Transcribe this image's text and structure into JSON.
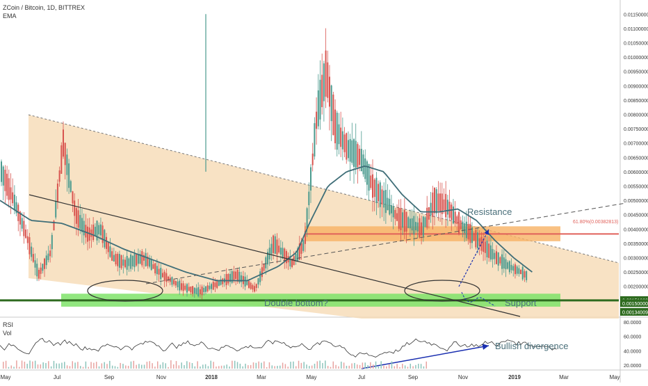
{
  "header": {
    "symbol_line": "ZCoin / Bitcoin, 1D, BITTREX",
    "indicator": "EMA"
  },
  "rsi_panel": {
    "label": "RSI",
    "vol_label": "Vol",
    "ticks": [
      "80.0000",
      "60.0000",
      "40.0000",
      "20.0000"
    ]
  },
  "annotations": {
    "resistance": "Resistance",
    "support": "Support",
    "double_bottom": "Double bottom?",
    "bullish_divergence": "Bullish divergence",
    "fib_label": "61.80%(0.00382813)"
  },
  "price_tags": [
    {
      "label": "0.00151009",
      "color": "#2e6b1f"
    },
    {
      "label": "0.00150000",
      "color": "#2e6b1f"
    },
    {
      "label": "0.00134009",
      "color": "#2e6b1f"
    }
  ],
  "chart_data": {
    "type": "candlestick",
    "xlabel": "",
    "ylabel": "",
    "ylim": [
      0.0,
      0.0116
    ],
    "y_ticks": [
      "0.01150000",
      "0.01100000",
      "0.01050000",
      "0.01000000",
      "0.00950000",
      "0.00900000",
      "0.00850000",
      "0.00800000",
      "0.00750000",
      "0.00700000",
      "0.00650000",
      "0.00600000",
      "0.00550000",
      "0.00500000",
      "0.00450000",
      "0.00400000",
      "0.00350000",
      "0.00300000",
      "0.00250000",
      "0.00200000"
    ],
    "x_ticks": [
      "May",
      "Jul",
      "Sep",
      "Nov",
      "2018",
      "Mar",
      "May",
      "Jul",
      "Sep",
      "Nov",
      "2019",
      "Mar",
      "May"
    ],
    "price_path": [
      [
        0,
        0.006
      ],
      [
        0.02,
        0.005
      ],
      [
        0.04,
        0.0038
      ],
      [
        0.06,
        0.0024
      ],
      [
        0.08,
        0.0032
      ],
      [
        0.1,
        0.007
      ],
      [
        0.12,
        0.0045
      ],
      [
        0.14,
        0.0038
      ],
      [
        0.16,
        0.004
      ],
      [
        0.18,
        0.003
      ],
      [
        0.2,
        0.0028
      ],
      [
        0.23,
        0.003
      ],
      [
        0.26,
        0.0024
      ],
      [
        0.29,
        0.002
      ],
      [
        0.32,
        0.0018
      ],
      [
        0.35,
        0.0021
      ],
      [
        0.38,
        0.0024
      ],
      [
        0.41,
        0.0019
      ],
      [
        0.44,
        0.0035
      ],
      [
        0.47,
        0.0028
      ],
      [
        0.49,
        0.0035
      ],
      [
        0.51,
        0.008
      ],
      [
        0.525,
        0.0095
      ],
      [
        0.54,
        0.0075
      ],
      [
        0.56,
        0.0068
      ],
      [
        0.58,
        0.0065
      ],
      [
        0.6,
        0.0055
      ],
      [
        0.62,
        0.005
      ],
      [
        0.64,
        0.0044
      ],
      [
        0.66,
        0.0042
      ],
      [
        0.68,
        0.004
      ],
      [
        0.7,
        0.005
      ],
      [
        0.72,
        0.0048
      ],
      [
        0.74,
        0.0042
      ],
      [
        0.76,
        0.0038
      ],
      [
        0.78,
        0.0034
      ],
      [
        0.8,
        0.003
      ],
      [
        0.82,
        0.0027
      ],
      [
        0.84,
        0.0025
      ],
      [
        0.86,
        0.0022
      ],
      [
        0.88,
        0.002
      ],
      [
        0.9,
        0.0017
      ],
      [
        0.92,
        0.0016
      ],
      [
        0.94,
        0.0015
      ],
      [
        0.96,
        0.0016
      ],
      [
        0.98,
        0.0016
      ],
      [
        1.0,
        0.0017
      ]
    ],
    "ema_path": [
      [
        0,
        0.005
      ],
      [
        0.05,
        0.0043
      ],
      [
        0.1,
        0.0042
      ],
      [
        0.15,
        0.0038
      ],
      [
        0.2,
        0.0033
      ],
      [
        0.25,
        0.0029
      ],
      [
        0.3,
        0.0025
      ],
      [
        0.35,
        0.0022
      ],
      [
        0.4,
        0.0022
      ],
      [
        0.45,
        0.0027
      ],
      [
        0.48,
        0.0032
      ],
      [
        0.5,
        0.0042
      ],
      [
        0.53,
        0.0055
      ],
      [
        0.56,
        0.006
      ],
      [
        0.59,
        0.0062
      ],
      [
        0.62,
        0.006
      ],
      [
        0.65,
        0.0052
      ],
      [
        0.68,
        0.0046
      ],
      [
        0.71,
        0.0046
      ],
      [
        0.74,
        0.0047
      ],
      [
        0.77,
        0.0043
      ],
      [
        0.8,
        0.0036
      ],
      [
        0.83,
        0.003
      ],
      [
        0.86,
        0.0025
      ],
      [
        0.89,
        0.0022
      ],
      [
        0.92,
        0.0019
      ],
      [
        0.95,
        0.0017
      ],
      [
        1.0,
        0.0016
      ]
    ],
    "resistance_zone": [
      0.00372,
      0.00395
    ],
    "support_zone": [
      0.00134,
      0.00155
    ],
    "support_line": 0.00151009
  }
}
